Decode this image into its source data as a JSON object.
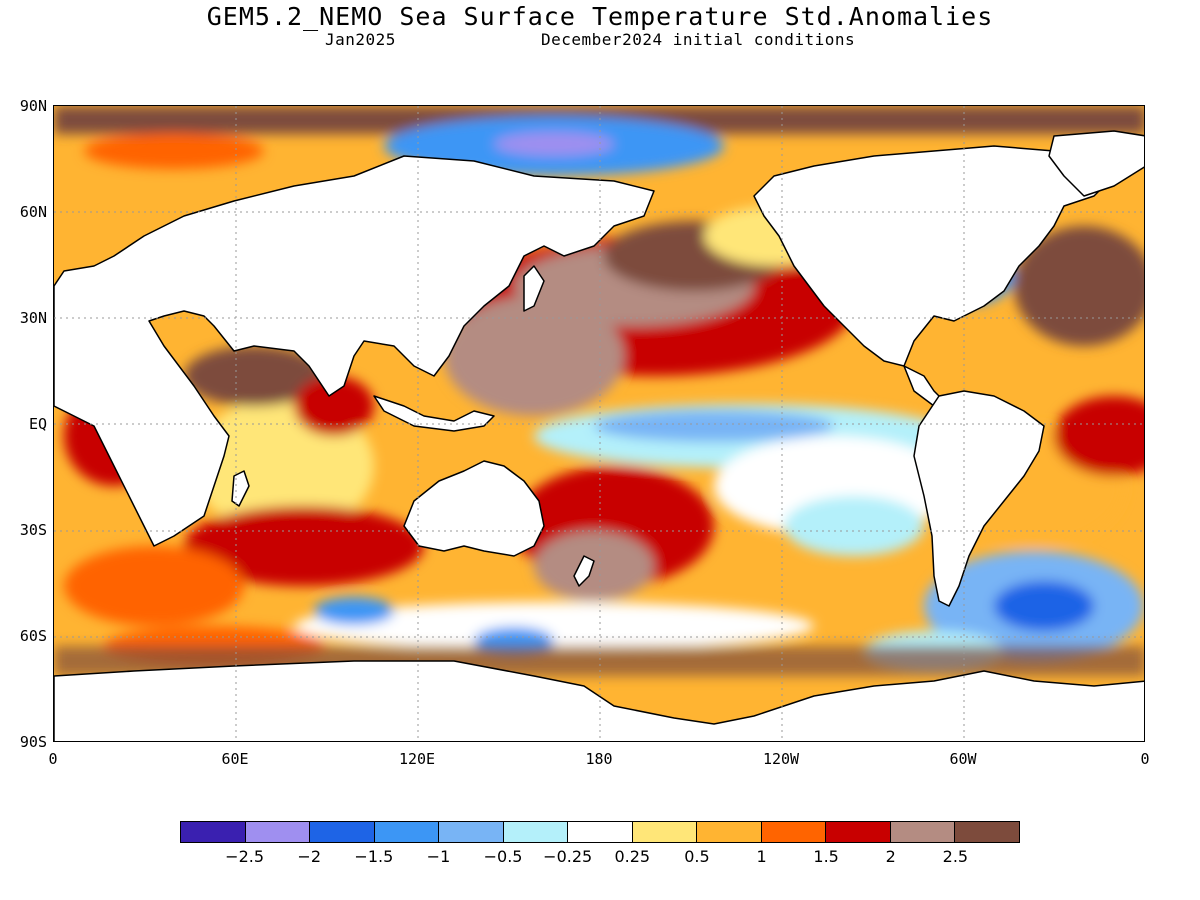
{
  "title": "GEM5.2_NEMO Sea Surface Temperature Std.Anomalies",
  "subtitle_left": "Jan2025",
  "subtitle_right": "December2024 initial conditions",
  "y_axis_labels": [
    "90N",
    "60N",
    "30N",
    "EQ",
    "30S",
    "60S",
    "90S"
  ],
  "x_axis_labels": [
    "0",
    "60E",
    "120E",
    "180",
    "120W",
    "60W",
    "0"
  ],
  "colorbar": {
    "colors": [
      "#3a20b0",
      "#9f8ff0",
      "#1e64e6",
      "#3c96f5",
      "#78b4f5",
      "#b4f0fa",
      "#ffffff",
      "#ffe678",
      "#ffb432",
      "#ff6400",
      "#c80000",
      "#b48c82",
      "#7d4b3c"
    ],
    "labels": [
      "−2.5",
      "−2",
      "−1.5",
      "−1",
      "−0.5",
      "−0.25",
      "0.25",
      "0.5",
      "1",
      "1.5",
      "2",
      "2.5"
    ]
  },
  "map": {
    "land_color": "#ffffff",
    "grid": "dotted"
  }
}
